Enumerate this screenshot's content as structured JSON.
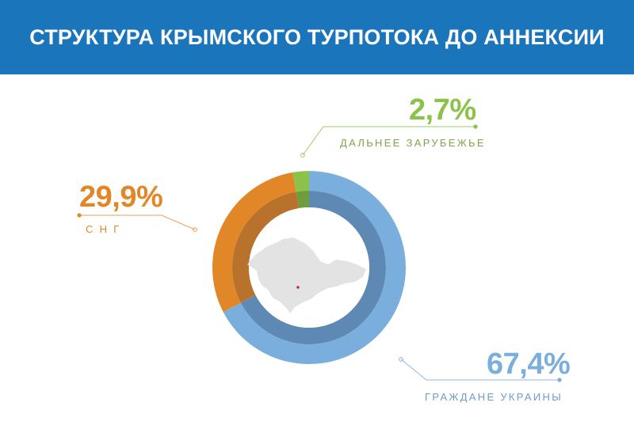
{
  "header": {
    "title": "СТРУКТУРА КРЫМСКОГО ТУРПОТОКА ДО АННЕКСИИ"
  },
  "colors": {
    "header_bg": "#1b75bb",
    "ukraine": "#7aaedd",
    "ukraine_inner": "#5e89b5",
    "cis": "#e28727",
    "cis_inner": "#b8722b",
    "far_abroad": "#8bc34a",
    "far_abroad_inner": "#6f9c3c",
    "map": "#e3e3e3"
  },
  "chart_data": {
    "type": "pie",
    "variant": "donut",
    "title": "СТРУКТУРА КРЫМСКОГО ТУРПОТОКА ДО АННЕКСИИ",
    "unit": "%",
    "slices": [
      {
        "key": "ukraine",
        "label": "ГРАЖДАНЕ УКРАИНЫ",
        "value": 67.4,
        "value_label": "67,4%"
      },
      {
        "key": "cis",
        "label": "С Н Г",
        "value": 29.9,
        "value_label": "29,9%"
      },
      {
        "key": "far_abroad",
        "label": "ДАЛЬНЕЕ ЗАРУБЕЖЬЕ",
        "value": 2.7,
        "value_label": "2,7%"
      }
    ],
    "center_image": "crimea-map"
  }
}
